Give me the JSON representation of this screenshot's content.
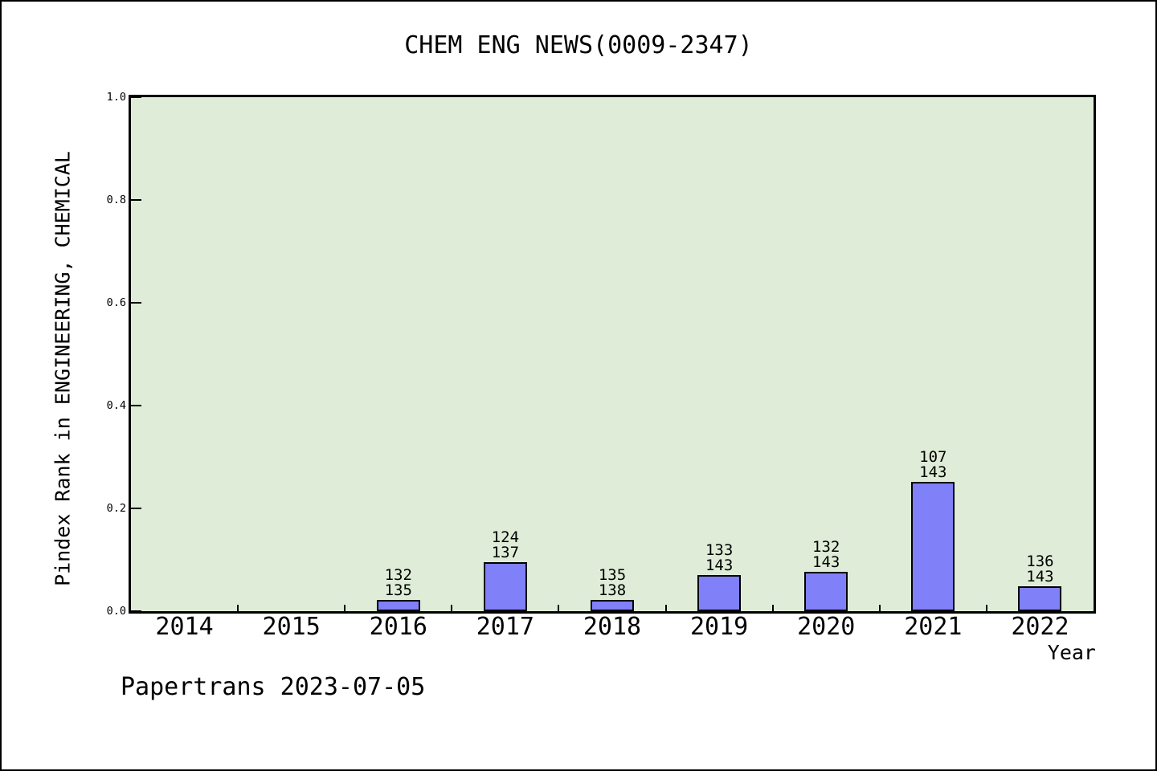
{
  "chart_data": {
    "type": "bar",
    "title": "CHEM ENG NEWS(0009-2347)",
    "xlabel": "Year",
    "ylabel": "Pindex Rank in ENGINEERING, CHEMICAL",
    "categories": [
      "2014",
      "2015",
      "2016",
      "2017",
      "2018",
      "2019",
      "2020",
      "2021",
      "2022"
    ],
    "ylim": [
      0.0,
      1.0
    ],
    "yticks": [
      0.0,
      0.2,
      0.4,
      0.6,
      0.8,
      1.0
    ],
    "ytick_labels": [
      "0.0",
      "0.2",
      "0.4",
      "0.6",
      "0.8",
      "1.0"
    ],
    "grid": false,
    "legend_position": null,
    "bars": [
      {
        "category": "2016",
        "rank": 132,
        "total": 135,
        "value": 0.0222
      },
      {
        "category": "2017",
        "rank": 124,
        "total": 137,
        "value": 0.0949
      },
      {
        "category": "2018",
        "rank": 135,
        "total": 138,
        "value": 0.0217
      },
      {
        "category": "2019",
        "rank": 133,
        "total": 143,
        "value": 0.0699
      },
      {
        "category": "2020",
        "rank": 132,
        "total": 143,
        "value": 0.0769
      },
      {
        "category": "2021",
        "rank": 107,
        "total": 143,
        "value": 0.2517
      },
      {
        "category": "2022",
        "rank": 136,
        "total": 143,
        "value": 0.049
      }
    ],
    "colors": {
      "plot_bg": "#dfedd8",
      "bar_fill": "#8080f8",
      "bar_border": "#000000",
      "axis": "#000000",
      "text": "#000000",
      "page_bg": "#ffffff"
    }
  },
  "footer": {
    "text": "Papertrans 2023-07-05"
  }
}
